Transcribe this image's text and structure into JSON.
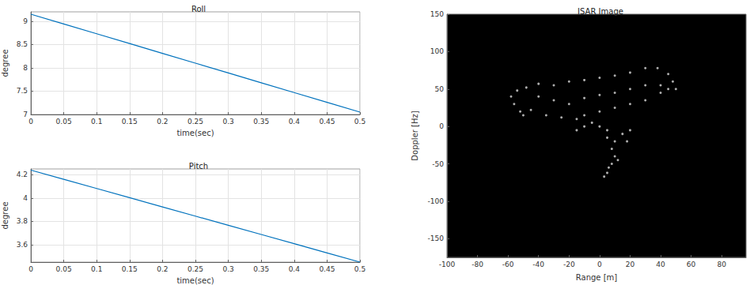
{
  "chart_data": [
    {
      "type": "line",
      "title": "Roll",
      "xlabel": "time(sec)",
      "ylabel": "degree",
      "x": [
        0,
        0.05,
        0.1,
        0.15,
        0.2,
        0.25,
        0.3,
        0.35,
        0.4,
        0.45,
        0.5
      ],
      "values": [
        9.15,
        8.94,
        8.73,
        8.52,
        8.31,
        8.1,
        7.89,
        7.68,
        7.47,
        7.26,
        7.05
      ],
      "color": "#0072bd",
      "marker": "none",
      "line_style": "solid",
      "xlim": [
        0,
        0.5
      ],
      "xticks": [
        0,
        0.05,
        0.1,
        0.15,
        0.2,
        0.25,
        0.3,
        0.35,
        0.4,
        0.45,
        0.5
      ],
      "ylim": [
        7,
        9.2
      ],
      "yticks": [
        7,
        7.5,
        8,
        8.5,
        9
      ],
      "grid": true
    },
    {
      "type": "line",
      "title": "Pitch",
      "xlabel": "time(sec)",
      "ylabel": "degree",
      "x": [
        0,
        0.05,
        0.1,
        0.15,
        0.2,
        0.25,
        0.3,
        0.35,
        0.4,
        0.45,
        0.5
      ],
      "values": [
        4.24,
        4.161,
        4.082,
        4.003,
        3.924,
        3.845,
        3.766,
        3.687,
        3.608,
        3.529,
        3.45
      ],
      "color": "#0072bd",
      "marker": "none",
      "line_style": "solid",
      "xlim": [
        0,
        0.5
      ],
      "xticks": [
        0,
        0.05,
        0.1,
        0.15,
        0.2,
        0.25,
        0.3,
        0.35,
        0.4,
        0.45,
        0.5
      ],
      "ylim": [
        3.45,
        4.25
      ],
      "yticks": [
        3.6,
        3.8,
        4,
        4.2
      ],
      "grid": true
    },
    {
      "type": "scatter",
      "title": "ISAR Image",
      "xlabel": "Range [m]",
      "ylabel": "Doppler [Hz]",
      "x": [
        -58,
        -56,
        -52,
        -50,
        -54,
        -48,
        -40,
        -30,
        -20,
        -10,
        0,
        10,
        20,
        30,
        38,
        45,
        48,
        50,
        -40,
        -30,
        -20,
        -10,
        0,
        10,
        20,
        30,
        40,
        45,
        -45,
        -35,
        -25,
        -15,
        -10,
        0,
        10,
        20,
        30,
        40,
        -5,
        -15,
        -10,
        0,
        5,
        5,
        10,
        15,
        20,
        18,
        8,
        10,
        12,
        8,
        6,
        5,
        3
      ],
      "values": [
        40,
        30,
        20,
        15,
        48,
        52,
        57,
        55,
        60,
        62,
        65,
        68,
        72,
        78,
        78,
        70,
        60,
        50,
        40,
        35,
        30,
        38,
        42,
        45,
        50,
        55,
        55,
        50,
        22,
        15,
        12,
        10,
        15,
        20,
        25,
        30,
        35,
        45,
        5,
        -5,
        0,
        0,
        -5,
        -15,
        -20,
        -10,
        -5,
        -20,
        -30,
        -40,
        -45,
        -50,
        -55,
        -62,
        -67
      ],
      "color": "#d9d9d9",
      "marker": "circle",
      "xlim": [
        -100,
        96
      ],
      "xticks": [
        -100,
        -80,
        -60,
        -40,
        -20,
        0,
        20,
        40,
        60,
        80
      ],
      "ylim": [
        -175,
        150
      ],
      "yticks": [
        -150,
        -100,
        -50,
        0,
        50,
        100,
        150
      ],
      "grid": false
    }
  ]
}
